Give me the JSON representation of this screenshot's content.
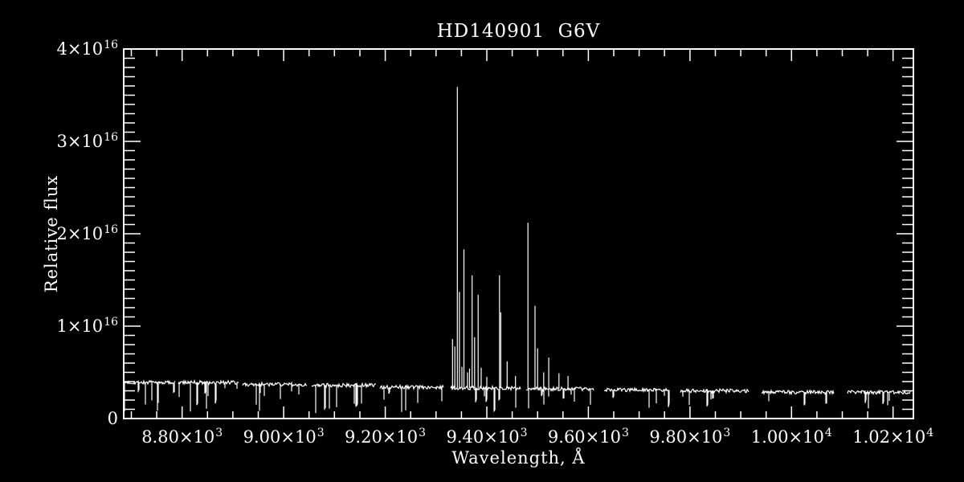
{
  "page": {
    "background": "#000000",
    "foreground": "#ffffff"
  },
  "chart_data": {
    "type": "line",
    "title": "HD140901  G6V",
    "xlabel": "Wavelength, Å",
    "ylabel": "Relative flux",
    "flux_unit_exponent": 16,
    "xlim": [
      8685,
      10240
    ],
    "ylim_1e16": [
      0,
      4
    ],
    "grid": false,
    "line_color": "#ffffff",
    "axis_color": "#ffffff",
    "x_major_tick_step": 200,
    "x_minor_tick_step": 50,
    "y_major_tick_step_1e16": 1,
    "y_minor_tick_step_1e16": 0.1,
    "x_ticks": [
      {
        "value": 8800,
        "base": "8.80×10",
        "exp": "3"
      },
      {
        "value": 9000,
        "base": "9.00×10",
        "exp": "3"
      },
      {
        "value": 9200,
        "base": "9.20×10",
        "exp": "3"
      },
      {
        "value": 9400,
        "base": "9.40×10",
        "exp": "3"
      },
      {
        "value": 9600,
        "base": "9.60×10",
        "exp": "3"
      },
      {
        "value": 9800,
        "base": "9.80×10",
        "exp": "3"
      },
      {
        "value": 10000,
        "base": "1.00×10",
        "exp": "4"
      },
      {
        "value": 10200,
        "base": "1.02×10",
        "exp": "4"
      }
    ],
    "y_ticks": [
      {
        "value": 0,
        "base": "0",
        "exp": ""
      },
      {
        "value": 1,
        "base": "1×10",
        "exp": "16"
      },
      {
        "value": 2,
        "base": "2×10",
        "exp": "16"
      },
      {
        "value": 3,
        "base": "3×10",
        "exp": "16"
      },
      {
        "value": 4,
        "base": "4×10",
        "exp": "16"
      }
    ],
    "continuum_segments": [
      {
        "x0": 8687,
        "x1": 8786,
        "level": 0.39,
        "dip_density": 0.1,
        "dip_max": 0.26
      },
      {
        "x0": 8793,
        "x1": 8911,
        "level": 0.39,
        "dip_density": 0.1,
        "dip_max": 0.32
      },
      {
        "x0": 8919,
        "x1": 9046,
        "level": 0.37,
        "dip_density": 0.09,
        "dip_max": 0.28
      },
      {
        "x0": 9055,
        "x1": 9182,
        "level": 0.36,
        "dip_density": 0.09,
        "dip_max": 0.26
      },
      {
        "x0": 9190,
        "x1": 9315,
        "level": 0.34,
        "dip_density": 0.08,
        "dip_max": 0.22
      },
      {
        "x0": 9329,
        "x1": 9466,
        "level": 0.33,
        "dip_density": 0.08,
        "dip_max": 0.2
      },
      {
        "x0": 9478,
        "x1": 9611,
        "level": 0.32,
        "dip_density": 0.07,
        "dip_max": 0.18
      },
      {
        "x0": 9631,
        "x1": 9759,
        "level": 0.31,
        "dip_density": 0.06,
        "dip_max": 0.16
      },
      {
        "x0": 9781,
        "x1": 9915,
        "level": 0.3,
        "dip_density": 0.05,
        "dip_max": 0.14
      },
      {
        "x0": 9941,
        "x1": 10083,
        "level": 0.285,
        "dip_density": 0.05,
        "dip_max": 0.13
      },
      {
        "x0": 10110,
        "x1": 10233,
        "level": 0.285,
        "dip_density": 0.05,
        "dip_max": 0.13
      }
    ],
    "emission_lines": [
      {
        "wavelength": 9332.5,
        "peak": 0.86
      },
      {
        "wavelength": 9337.0,
        "peak": 0.78
      },
      {
        "wavelength": 9342.0,
        "peak": 3.59
      },
      {
        "wavelength": 9346.0,
        "peak": 1.37
      },
      {
        "wavelength": 9351.0,
        "peak": 0.56
      },
      {
        "wavelength": 9355.0,
        "peak": 1.83
      },
      {
        "wavelength": 9362.0,
        "peak": 0.5
      },
      {
        "wavelength": 9366.0,
        "peak": 0.54
      },
      {
        "wavelength": 9371.0,
        "peak": 1.55
      },
      {
        "wavelength": 9376.0,
        "peak": 0.88
      },
      {
        "wavelength": 9383.0,
        "peak": 1.34
      },
      {
        "wavelength": 9389.0,
        "peak": 0.55
      },
      {
        "wavelength": 9400.0,
        "peak": 0.45
      },
      {
        "wavelength": 9425.0,
        "peak": 1.55
      },
      {
        "wavelength": 9427.5,
        "peak": 1.15
      },
      {
        "wavelength": 9440.0,
        "peak": 0.62
      },
      {
        "wavelength": 9456.5,
        "peak": 0.46
      },
      {
        "wavelength": 9481.0,
        "peak": 2.12
      },
      {
        "wavelength": 9495.0,
        "peak": 1.22
      },
      {
        "wavelength": 9500.0,
        "peak": 0.76
      },
      {
        "wavelength": 9512.0,
        "peak": 0.5
      },
      {
        "wavelength": 9522.0,
        "peak": 0.66
      },
      {
        "wavelength": 9542.0,
        "peak": 0.49
      },
      {
        "wavelength": 9560.0,
        "peak": 0.46
      }
    ],
    "noise": {
      "amplitude": 0.02,
      "seed": 7
    }
  }
}
